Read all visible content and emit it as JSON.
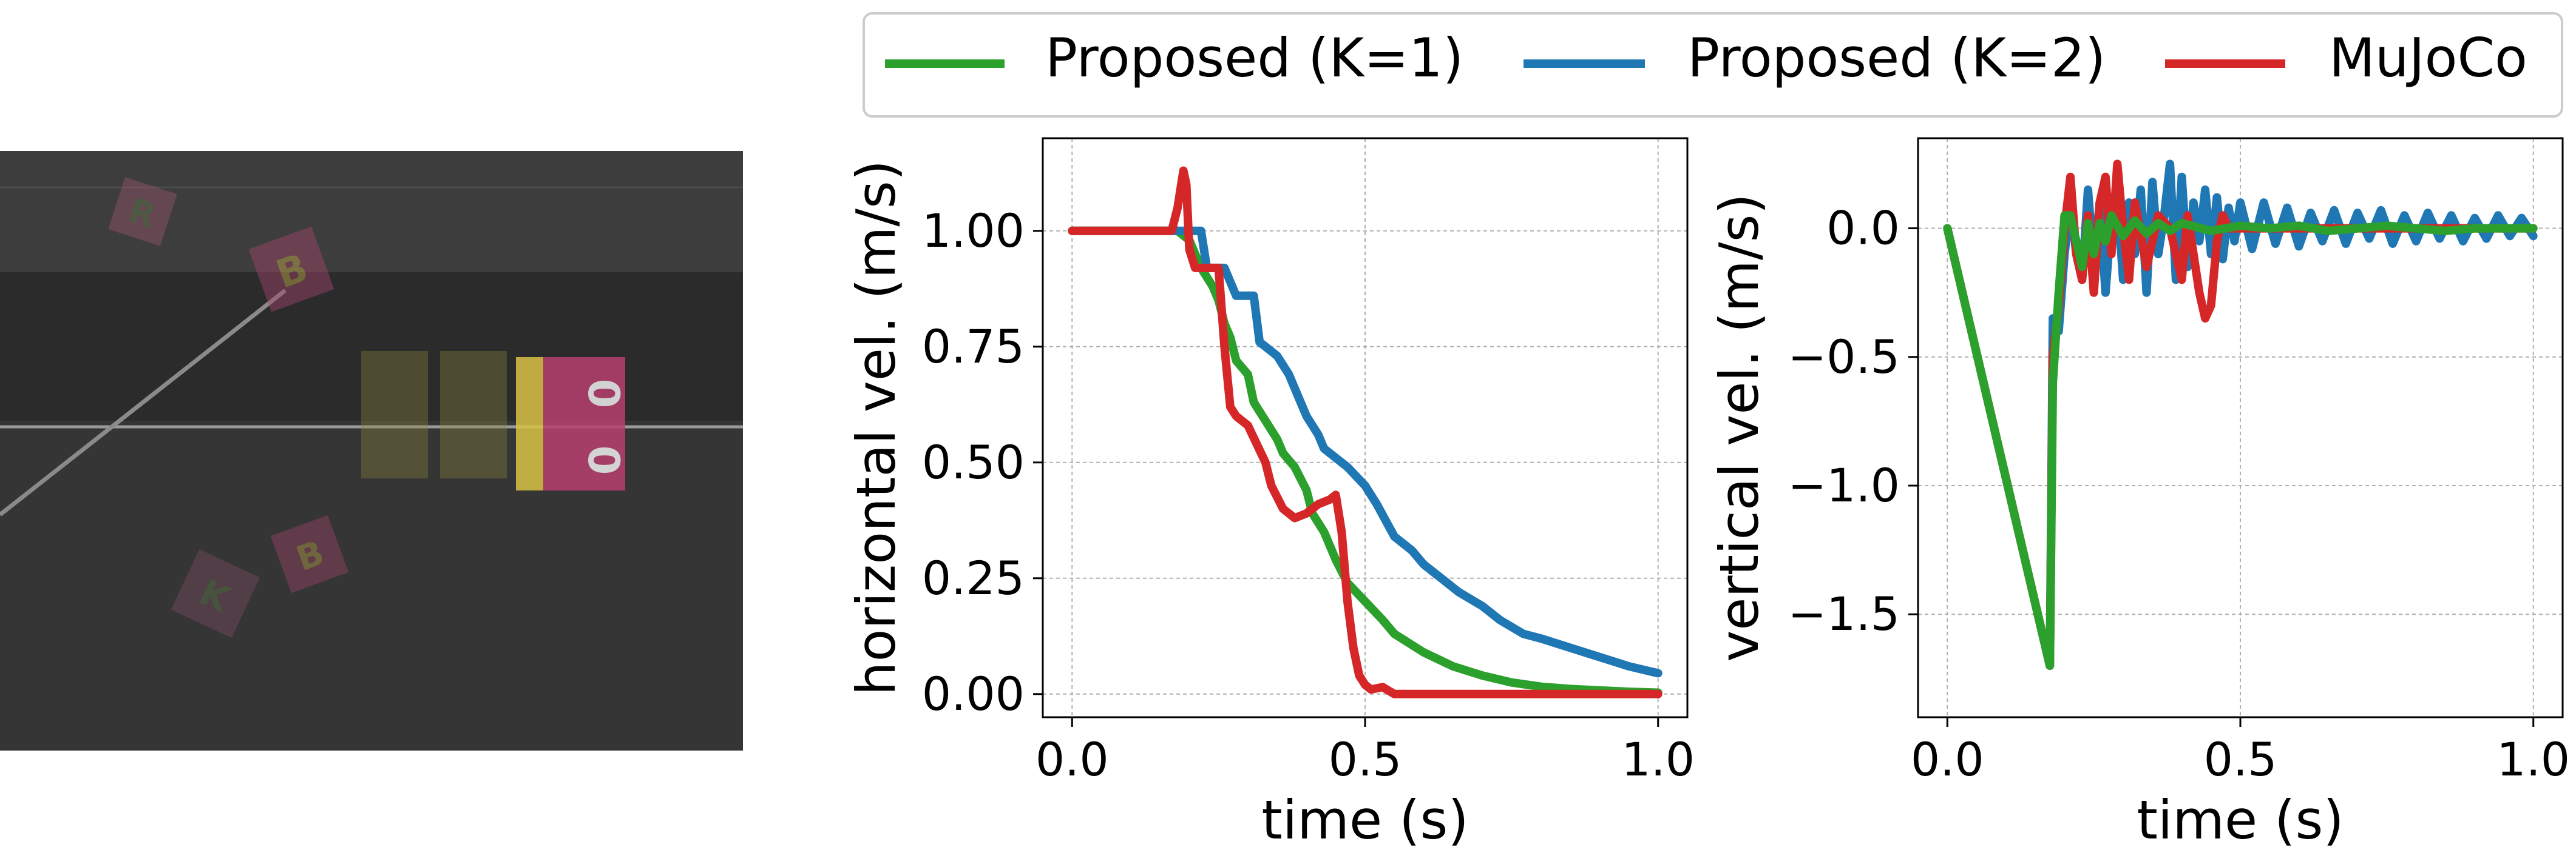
{
  "scene": {
    "colors": {
      "background": "#2a2a2a",
      "floor": "#333333",
      "far_band": "#474747",
      "line": "#8d8d8d"
    },
    "block_letters": [
      "R",
      "B",
      "0",
      "0",
      "B",
      "K"
    ]
  },
  "legend": {
    "entries": [
      {
        "label": "Proposed (K=1)",
        "color": "#2ca02c"
      },
      {
        "label": "Proposed (K=2)",
        "color": "#1f77b4"
      },
      {
        "label": "MuJoCo",
        "color": "#d62728"
      }
    ]
  },
  "chart_data": [
    {
      "type": "line",
      "xlabel": "time (s)",
      "ylabel": "horizontal vel. (m/s)",
      "xlim": [
        -0.05,
        1.05
      ],
      "ylim": [
        -0.05,
        1.2
      ],
      "xticks": [
        0.0,
        0.5,
        1.0
      ],
      "xtick_labels": [
        "0.0",
        "0.5",
        "1.0"
      ],
      "yticks": [
        0.0,
        0.25,
        0.5,
        0.75,
        1.0
      ],
      "ytick_labels": [
        "0.00",
        "0.25",
        "0.50",
        "0.75",
        "1.00"
      ],
      "grid": true,
      "series": [
        {
          "name": "Proposed (K=1)",
          "color": "#2ca02c",
          "x": [
            0.0,
            0.18,
            0.19,
            0.2,
            0.22,
            0.24,
            0.25,
            0.26,
            0.27,
            0.28,
            0.3,
            0.31,
            0.33,
            0.35,
            0.36,
            0.38,
            0.4,
            0.41,
            0.43,
            0.45,
            0.47,
            0.5,
            0.53,
            0.55,
            0.6,
            0.65,
            0.7,
            0.75,
            0.8,
            0.85,
            0.9,
            0.95,
            1.0
          ],
          "y": [
            1.0,
            1.0,
            0.99,
            0.98,
            0.92,
            0.88,
            0.85,
            0.8,
            0.77,
            0.72,
            0.69,
            0.63,
            0.59,
            0.55,
            0.52,
            0.49,
            0.44,
            0.39,
            0.35,
            0.29,
            0.24,
            0.2,
            0.16,
            0.13,
            0.09,
            0.06,
            0.04,
            0.025,
            0.016,
            0.011,
            0.008,
            0.005,
            0.003
          ]
        },
        {
          "name": "Proposed (K=2)",
          "color": "#1f77b4",
          "x": [
            0.0,
            0.19,
            0.2,
            0.22,
            0.23,
            0.24,
            0.26,
            0.28,
            0.29,
            0.31,
            0.32,
            0.33,
            0.35,
            0.37,
            0.38,
            0.39,
            0.4,
            0.42,
            0.43,
            0.45,
            0.47,
            0.5,
            0.52,
            0.55,
            0.58,
            0.6,
            0.63,
            0.66,
            0.7,
            0.73,
            0.77,
            0.8,
            0.85,
            0.9,
            0.95,
            1.0
          ],
          "y": [
            1.0,
            1.0,
            1.0,
            1.0,
            0.92,
            0.92,
            0.92,
            0.86,
            0.86,
            0.86,
            0.76,
            0.75,
            0.73,
            0.69,
            0.66,
            0.63,
            0.6,
            0.56,
            0.53,
            0.51,
            0.49,
            0.45,
            0.41,
            0.34,
            0.31,
            0.28,
            0.25,
            0.22,
            0.19,
            0.16,
            0.13,
            0.12,
            0.1,
            0.08,
            0.06,
            0.045
          ]
        },
        {
          "name": "MuJoCo",
          "color": "#d62728",
          "x": [
            0.0,
            0.17,
            0.18,
            0.19,
            0.195,
            0.2,
            0.21,
            0.23,
            0.25,
            0.26,
            0.27,
            0.28,
            0.3,
            0.33,
            0.34,
            0.36,
            0.38,
            0.4,
            0.42,
            0.44,
            0.45,
            0.46,
            0.47,
            0.48,
            0.49,
            0.5,
            0.51,
            0.53,
            0.55,
            0.6,
            0.7,
            0.8,
            0.9,
            1.0
          ],
          "y": [
            1.0,
            1.0,
            1.05,
            1.13,
            1.1,
            0.96,
            0.92,
            0.92,
            0.92,
            0.75,
            0.62,
            0.6,
            0.58,
            0.5,
            0.45,
            0.4,
            0.38,
            0.39,
            0.41,
            0.42,
            0.43,
            0.35,
            0.2,
            0.1,
            0.04,
            0.02,
            0.01,
            0.015,
            0.0,
            0.0,
            0.0,
            0.0,
            0.0,
            0.0
          ]
        }
      ]
    },
    {
      "type": "line",
      "xlabel": "time (s)",
      "ylabel": "vertical vel. (m/s)",
      "xlim": [
        -0.05,
        1.05
      ],
      "ylim": [
        -1.9,
        0.35
      ],
      "xticks": [
        0.0,
        0.5,
        1.0
      ],
      "xtick_labels": [
        "0.0",
        "0.5",
        "1.0"
      ],
      "yticks": [
        0.0,
        -0.5,
        -1.0,
        -1.5
      ],
      "ytick_labels": [
        "0.0",
        "−0.5",
        "−1.0",
        "−1.5"
      ],
      "grid": true,
      "series": [
        {
          "name": "Proposed (K=2)",
          "color": "#1f77b4",
          "x": [
            0.0,
            0.175,
            0.18,
            0.19,
            0.2,
            0.21,
            0.22,
            0.23,
            0.24,
            0.25,
            0.26,
            0.27,
            0.28,
            0.29,
            0.3,
            0.31,
            0.32,
            0.33,
            0.34,
            0.35,
            0.36,
            0.37,
            0.38,
            0.39,
            0.4,
            0.41,
            0.42,
            0.43,
            0.44,
            0.45,
            0.46,
            0.47,
            0.48,
            0.49,
            0.5,
            0.52,
            0.54,
            0.56,
            0.58,
            0.6,
            0.62,
            0.64,
            0.66,
            0.68,
            0.7,
            0.72,
            0.74,
            0.76,
            0.78,
            0.8,
            0.82,
            0.84,
            0.86,
            0.88,
            0.9,
            0.92,
            0.94,
            0.96,
            0.98,
            1.0
          ],
          "y": [
            0.0,
            -1.7,
            -0.35,
            -0.4,
            -0.1,
            0.1,
            -0.1,
            -0.2,
            0.15,
            -0.15,
            0.1,
            -0.25,
            0.05,
            0.12,
            -0.2,
            0.1,
            -0.1,
            0.15,
            -0.25,
            0.18,
            -0.1,
            0.05,
            0.25,
            -0.2,
            0.2,
            -0.15,
            0.1,
            -0.05,
            0.15,
            -0.1,
            0.12,
            -0.12,
            0.08,
            -0.05,
            0.1,
            -0.08,
            0.1,
            -0.06,
            0.08,
            -0.07,
            0.06,
            -0.05,
            0.07,
            -0.06,
            0.06,
            -0.04,
            0.07,
            -0.06,
            0.05,
            -0.05,
            0.06,
            -0.04,
            0.05,
            -0.05,
            0.04,
            -0.04,
            0.05,
            -0.03,
            0.04,
            -0.03
          ]
        },
        {
          "name": "MuJoCo",
          "color": "#d62728",
          "x": [
            0.0,
            0.175,
            0.18,
            0.19,
            0.2,
            0.21,
            0.22,
            0.23,
            0.24,
            0.25,
            0.26,
            0.27,
            0.28,
            0.29,
            0.3,
            0.31,
            0.32,
            0.34,
            0.36,
            0.38,
            0.4,
            0.41,
            0.42,
            0.43,
            0.44,
            0.45,
            0.46,
            0.47,
            0.48,
            0.5,
            0.55,
            0.6,
            0.7,
            0.8,
            0.9,
            1.0
          ],
          "y": [
            0.0,
            -1.7,
            -0.5,
            -0.3,
            0.0,
            0.2,
            -0.1,
            -0.2,
            0.05,
            -0.25,
            0.1,
            0.2,
            -0.1,
            0.25,
            0.0,
            -0.2,
            0.1,
            -0.15,
            0.05,
            0.0,
            -0.2,
            0.05,
            -0.1,
            -0.25,
            -0.35,
            -0.3,
            -0.05,
            0.05,
            0.0,
            0.0,
            0.0,
            0.0,
            0.0,
            0.0,
            0.0,
            0.0
          ]
        },
        {
          "name": "Proposed (K=1)",
          "color": "#2ca02c",
          "x": [
            0.0,
            0.175,
            0.18,
            0.19,
            0.2,
            0.21,
            0.22,
            0.23,
            0.24,
            0.25,
            0.26,
            0.27,
            0.28,
            0.3,
            0.32,
            0.34,
            0.36,
            0.38,
            0.4,
            0.45,
            0.5,
            0.55,
            0.6,
            0.65,
            0.7,
            0.75,
            0.8,
            0.85,
            0.9,
            0.95,
            1.0
          ],
          "y": [
            0.0,
            -1.7,
            -0.6,
            -0.25,
            0.05,
            0.05,
            -0.05,
            -0.15,
            0.02,
            -0.1,
            0.02,
            -0.05,
            0.05,
            -0.03,
            0.03,
            -0.02,
            0.02,
            -0.01,
            0.02,
            -0.01,
            0.01,
            0.0,
            0.01,
            -0.01,
            0.0,
            0.01,
            0.0,
            -0.01,
            0.0,
            0.0,
            0.0
          ]
        }
      ]
    }
  ]
}
